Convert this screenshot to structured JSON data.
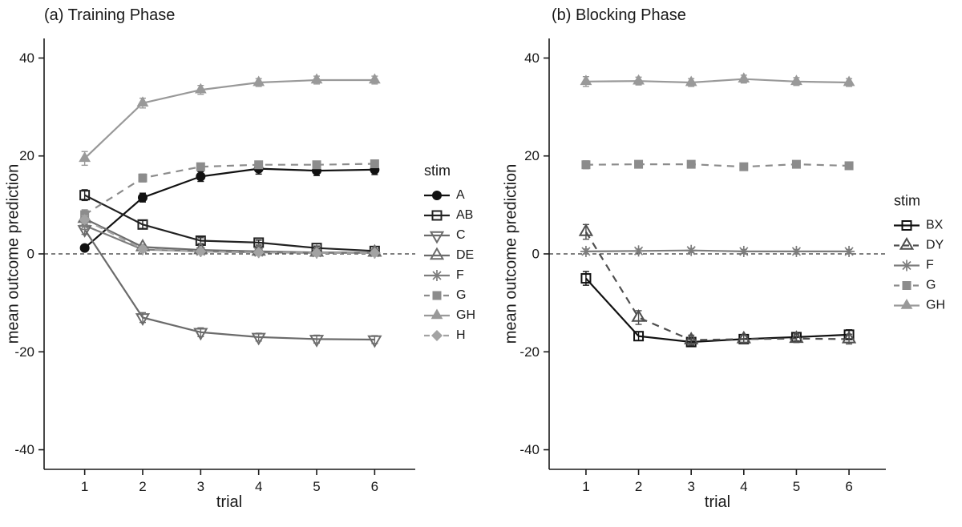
{
  "page": {
    "background": "#ffffff"
  },
  "chart_data": [
    {
      "panel": "a",
      "type": "line",
      "title": "(a) Training Phase",
      "xlabel": "trial",
      "ylabel": "mean outcome prediction",
      "legend_title": "stim",
      "legend_position": "right",
      "grid": false,
      "zero_line": true,
      "x": [
        1,
        2,
        3,
        4,
        5,
        6
      ],
      "xticks": [
        1,
        2,
        3,
        4,
        5,
        6
      ],
      "yticks": [
        -40,
        -20,
        0,
        20,
        40
      ],
      "xlim": [
        0.3,
        6.7
      ],
      "ylim": [
        -44,
        44
      ],
      "series": [
        {
          "name": "A",
          "marker": "circle-filled",
          "line": "solid",
          "color": "#111111",
          "values": [
            1.2,
            11.5,
            15.8,
            17.4,
            17.0,
            17.2
          ],
          "se": [
            0.6,
            0.9,
            1.0,
            1.1,
            1.0,
            1.0
          ]
        },
        {
          "name": "AB",
          "marker": "square-open",
          "line": "solid",
          "color": "#222222",
          "values": [
            12.0,
            6.0,
            2.7,
            2.3,
            1.2,
            0.6
          ],
          "se": [
            1.1,
            0.8,
            0.6,
            0.5,
            0.4,
            0.4
          ]
        },
        {
          "name": "C",
          "marker": "triangle-down-open",
          "line": "solid",
          "color": "#6b6b6b",
          "values": [
            5.0,
            -13.0,
            -16.0,
            -17.0,
            -17.4,
            -17.5
          ],
          "se": [
            1.0,
            1.0,
            0.9,
            0.8,
            0.8,
            0.8
          ]
        },
        {
          "name": "DE",
          "marker": "triangle-up-open",
          "line": "solid",
          "color": "#6b6b6b",
          "values": [
            7.2,
            1.4,
            0.8,
            0.5,
            0.3,
            0.3
          ],
          "se": [
            0.9,
            0.5,
            0.4,
            0.3,
            0.3,
            0.3
          ]
        },
        {
          "name": "F",
          "marker": "asterisk",
          "line": "solid",
          "color": "#7d7d7d",
          "values": [
            5.8,
            0.9,
            0.5,
            0.3,
            0.2,
            0.2
          ],
          "se": [
            0.8,
            0.4,
            0.3,
            0.3,
            0.2,
            0.2
          ]
        },
        {
          "name": "G",
          "marker": "square-filled",
          "line": "dashed",
          "color": "#8c8c8c",
          "values": [
            8.0,
            15.5,
            17.8,
            18.2,
            18.2,
            18.4
          ],
          "se": [
            1.0,
            0.8,
            0.7,
            0.6,
            0.6,
            0.6
          ]
        },
        {
          "name": "GH",
          "marker": "triangle-up-filled",
          "line": "solid",
          "color": "#999999",
          "values": [
            19.5,
            30.8,
            33.5,
            35.0,
            35.5,
            35.5
          ],
          "se": [
            1.4,
            1.0,
            0.9,
            0.8,
            0.8,
            0.8
          ]
        },
        {
          "name": "H",
          "marker": "diamond-filled",
          "line": "dashed",
          "color": "#a3a3a3",
          "values": [
            7.0,
            1.0,
            0.5,
            0.3,
            0.2,
            0.2
          ],
          "se": [
            0.8,
            0.5,
            0.3,
            0.3,
            0.2,
            0.2
          ]
        }
      ]
    },
    {
      "panel": "b",
      "type": "line",
      "title": "(b) Blocking Phase",
      "xlabel": "trial",
      "ylabel": "mean outcome prediction",
      "legend_title": "stim",
      "legend_position": "right",
      "grid": false,
      "zero_line": true,
      "x": [
        1,
        2,
        3,
        4,
        5,
        6
      ],
      "xticks": [
        1,
        2,
        3,
        4,
        5,
        6
      ],
      "yticks": [
        -40,
        -20,
        0,
        20,
        40
      ],
      "xlim": [
        0.3,
        6.7
      ],
      "ylim": [
        -44,
        44
      ],
      "series": [
        {
          "name": "BX",
          "marker": "square-open",
          "line": "solid",
          "color": "#111111",
          "values": [
            -5.0,
            -16.8,
            -18.0,
            -17.4,
            -17.0,
            -16.5
          ],
          "se": [
            1.4,
            0.9,
            0.8,
            0.8,
            0.8,
            1.0
          ]
        },
        {
          "name": "DY",
          "marker": "triangle-up-open",
          "line": "dashed",
          "color": "#4f4f4f",
          "values": [
            4.5,
            -13.0,
            -17.6,
            -17.4,
            -17.3,
            -17.4
          ],
          "se": [
            1.5,
            1.4,
            1.0,
            0.8,
            0.8,
            1.0
          ]
        },
        {
          "name": "F",
          "marker": "asterisk",
          "line": "solid",
          "color": "#7d7d7d",
          "values": [
            0.5,
            0.6,
            0.7,
            0.5,
            0.5,
            0.5
          ],
          "se": [
            0.5,
            0.4,
            0.4,
            0.4,
            0.4,
            0.4
          ]
        },
        {
          "name": "G",
          "marker": "square-filled",
          "line": "dashed",
          "color": "#8c8c8c",
          "values": [
            18.2,
            18.3,
            18.3,
            17.8,
            18.3,
            18.0
          ],
          "se": [
            0.8,
            0.6,
            0.6,
            0.6,
            0.6,
            0.6
          ]
        },
        {
          "name": "GH",
          "marker": "triangle-up-filled",
          "line": "solid",
          "color": "#999999",
          "values": [
            35.2,
            35.3,
            35.0,
            35.7,
            35.2,
            35.0
          ],
          "se": [
            1.0,
            0.8,
            0.8,
            0.8,
            0.8,
            0.8
          ]
        }
      ]
    }
  ]
}
